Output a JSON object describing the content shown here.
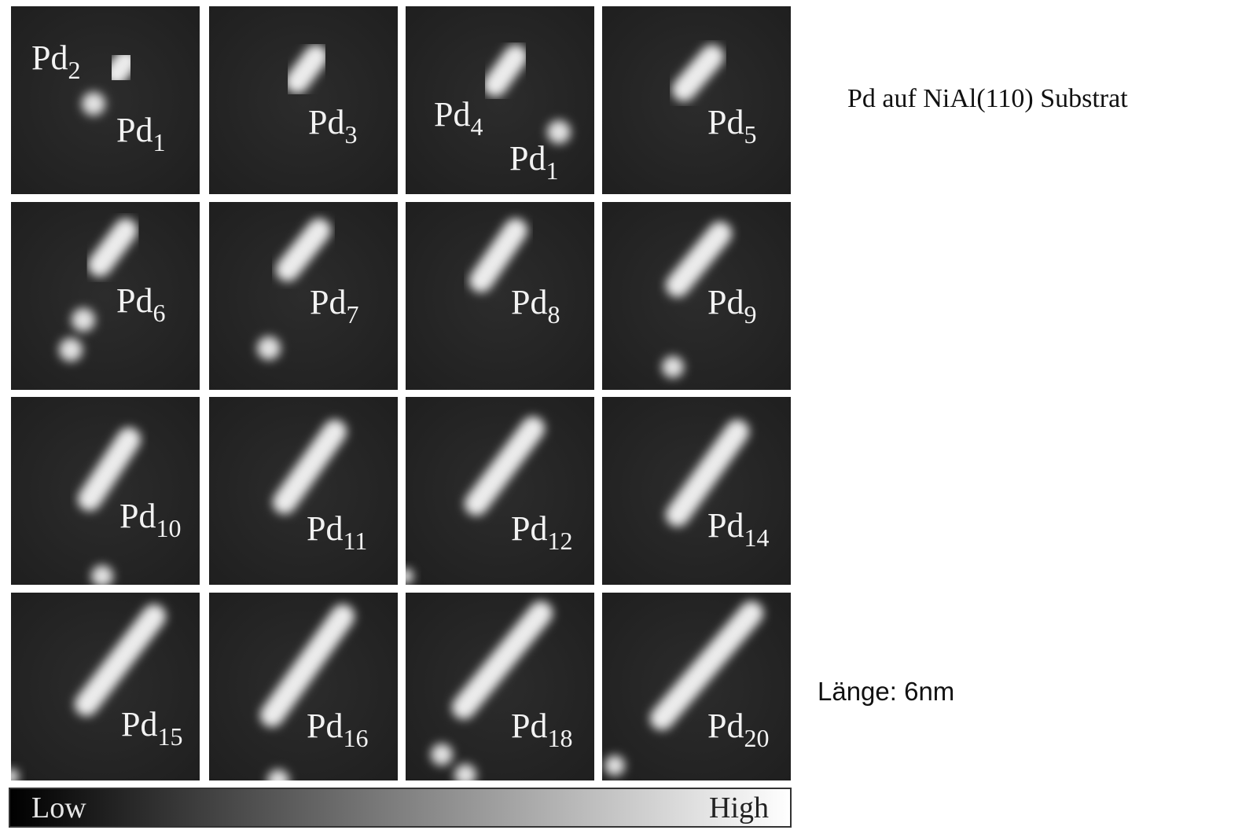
{
  "figure": {
    "panels": [
      {
        "labels": [
          {
            "base": "Pd",
            "sub": "2"
          },
          {
            "base": "Pd",
            "sub": "1"
          }
        ]
      },
      {
        "labels": [
          {
            "base": "Pd",
            "sub": "3"
          }
        ]
      },
      {
        "labels": [
          {
            "base": "Pd",
            "sub": "4"
          },
          {
            "base": "Pd",
            "sub": "1"
          }
        ]
      },
      {
        "labels": [
          {
            "base": "Pd",
            "sub": "5"
          }
        ]
      },
      {
        "labels": [
          {
            "base": "Pd",
            "sub": "6"
          }
        ]
      },
      {
        "labels": [
          {
            "base": "Pd",
            "sub": "7"
          }
        ]
      },
      {
        "labels": [
          {
            "base": "Pd",
            "sub": "8"
          }
        ]
      },
      {
        "labels": [
          {
            "base": "Pd",
            "sub": "9"
          }
        ]
      },
      {
        "labels": [
          {
            "base": "Pd",
            "sub": "10"
          }
        ]
      },
      {
        "labels": [
          {
            "base": "Pd",
            "sub": "11"
          }
        ]
      },
      {
        "labels": [
          {
            "base": "Pd",
            "sub": "12"
          }
        ]
      },
      {
        "labels": [
          {
            "base": "Pd",
            "sub": "14"
          }
        ]
      },
      {
        "labels": [
          {
            "base": "Pd",
            "sub": "15"
          }
        ]
      },
      {
        "labels": [
          {
            "base": "Pd",
            "sub": "16"
          }
        ]
      },
      {
        "labels": [
          {
            "base": "Pd",
            "sub": "18"
          }
        ]
      },
      {
        "labels": [
          {
            "base": "Pd",
            "sub": "20"
          }
        ]
      }
    ],
    "colorbar": {
      "low": "Low",
      "high": "High"
    }
  },
  "caption": {
    "title": "Pd auf NiAl(110) Substrat",
    "length": "Länge: 6nm"
  }
}
